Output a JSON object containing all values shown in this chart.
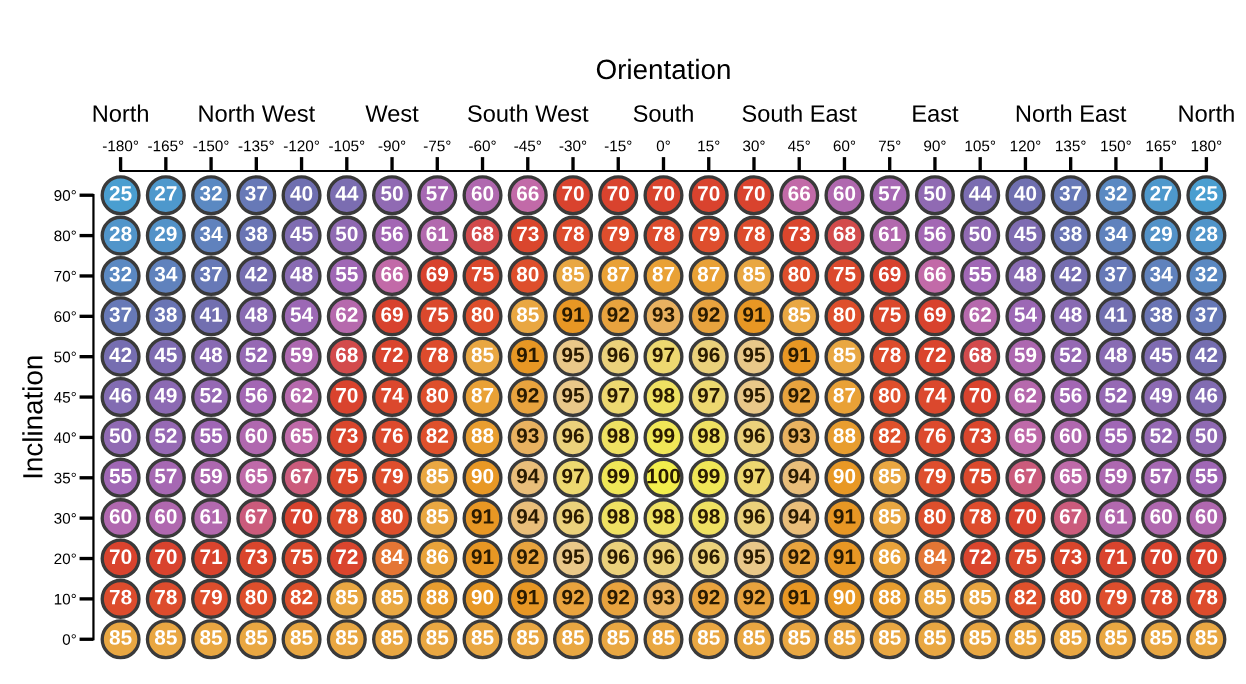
{
  "chart_data": {
    "type": "heatmap",
    "xlabel": "Orientation",
    "ylabel": "Inclination",
    "categories": [
      "-180°",
      "-165°",
      "-150°",
      "-135°",
      "-120°",
      "-105°",
      "-90°",
      "-75°",
      "-60°",
      "-45°",
      "-30°",
      "-15°",
      "0°",
      "15°",
      "30°",
      "45°",
      "60°",
      "75°",
      "90°",
      "105°",
      "120°",
      "135°",
      "150°",
      "165°",
      "180°"
    ],
    "y_categories": [
      "90°",
      "80°",
      "70°",
      "60°",
      "50°",
      "45°",
      "40°",
      "35°",
      "30°",
      "20°",
      "10°",
      "0°"
    ],
    "annotations": [
      "North",
      "North West",
      "West",
      "South West",
      "South",
      "South East",
      "East",
      "North East",
      "North"
    ],
    "cells": [
      [
        25,
        27,
        32,
        37,
        40,
        44,
        50,
        57,
        60,
        66,
        70,
        70,
        70,
        70,
        70,
        66,
        60,
        57,
        50,
        44,
        40,
        37,
        32,
        27,
        25
      ],
      [
        28,
        29,
        34,
        38,
        45,
        50,
        56,
        61,
        68,
        73,
        78,
        79,
        78,
        79,
        78,
        73,
        68,
        61,
        56,
        50,
        45,
        38,
        34,
        29,
        28
      ],
      [
        32,
        34,
        37,
        42,
        48,
        55,
        66,
        69,
        75,
        80,
        85,
        87,
        87,
        87,
        85,
        80,
        75,
        69,
        66,
        55,
        48,
        42,
        37,
        34,
        32
      ],
      [
        37,
        38,
        41,
        48,
        54,
        62,
        69,
        75,
        80,
        85,
        91,
        92,
        93,
        92,
        91,
        85,
        80,
        75,
        69,
        62,
        54,
        48,
        41,
        38,
        37
      ],
      [
        42,
        45,
        48,
        52,
        59,
        68,
        72,
        78,
        85,
        91,
        95,
        96,
        97,
        96,
        95,
        91,
        85,
        78,
        72,
        68,
        59,
        52,
        48,
        45,
        42
      ],
      [
        46,
        49,
        52,
        56,
        62,
        70,
        74,
        80,
        87,
        92,
        95,
        97,
        98,
        97,
        95,
        92,
        87,
        80,
        74,
        70,
        62,
        56,
        52,
        49,
        46
      ],
      [
        50,
        52,
        55,
        60,
        65,
        73,
        76,
        82,
        88,
        93,
        96,
        98,
        99,
        98,
        96,
        93,
        88,
        82,
        76,
        73,
        65,
        60,
        55,
        52,
        50
      ],
      [
        55,
        57,
        59,
        65,
        67,
        75,
        79,
        85,
        90,
        94,
        97,
        99,
        100,
        99,
        97,
        94,
        90,
        85,
        79,
        75,
        67,
        65,
        59,
        57,
        55
      ],
      [
        60,
        60,
        61,
        67,
        70,
        78,
        80,
        85,
        91,
        94,
        96,
        98,
        98,
        98,
        96,
        94,
        91,
        85,
        80,
        78,
        70,
        67,
        61,
        60,
        60
      ],
      [
        70,
        70,
        71,
        73,
        75,
        72,
        84,
        86,
        91,
        92,
        95,
        96,
        96,
        96,
        95,
        92,
        91,
        86,
        84,
        72,
        75,
        73,
        71,
        70,
        70
      ],
      [
        78,
        78,
        79,
        80,
        82,
        85,
        85,
        88,
        90,
        91,
        92,
        92,
        93,
        92,
        92,
        91,
        90,
        88,
        85,
        85,
        82,
        80,
        79,
        78,
        78
      ],
      [
        85,
        85,
        85,
        85,
        85,
        85,
        85,
        85,
        85,
        85,
        85,
        85,
        85,
        85,
        85,
        85,
        85,
        85,
        85,
        85,
        85,
        85,
        85,
        85,
        85
      ]
    ],
    "data_labels": true
  }
}
